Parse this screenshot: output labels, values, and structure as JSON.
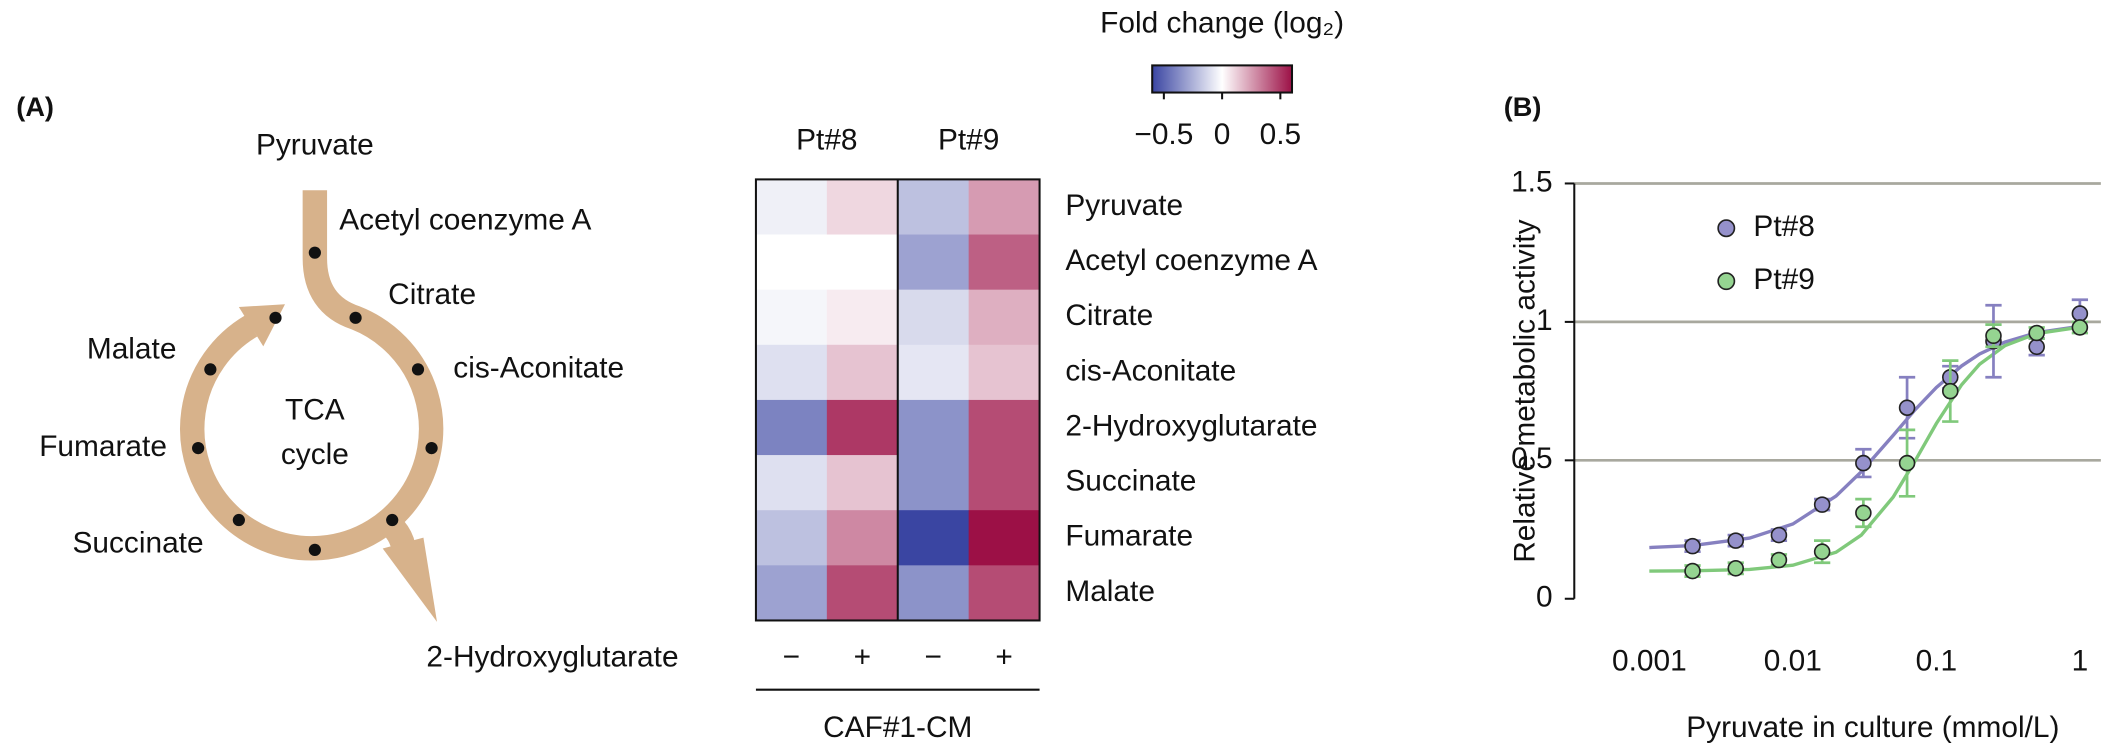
{
  "panel_labels": [
    "(A)",
    "(B)"
  ],
  "diagram": {
    "center": [
      "TCA",
      "cycle"
    ],
    "metabolites": [
      "Pyruvate",
      "Acetyl coenzyme A",
      "Citrate",
      "cis-Aconitate",
      "Malate",
      "Fumarate",
      "Succinate",
      "2-Hydroxyglutarate"
    ]
  },
  "chart_data": [
    {
      "type": "heatmap",
      "column_groups": [
        "Pt#8",
        "Pt#9"
      ],
      "columns": [
        "−",
        "+",
        "−",
        "+"
      ],
      "xlabel": "CAF#1-CM",
      "rows": [
        "Pyruvate",
        "Acetyl coenzyme A",
        "Citrate",
        "cis-Aconitate",
        "2-Hydroxyglutarate",
        "Succinate",
        "Fumarate",
        "Malate"
      ],
      "values": [
        [
          -0.05,
          0.1,
          -0.2,
          0.25
        ],
        [
          0,
          0,
          -0.3,
          0.4
        ],
        [
          -0.03,
          0.05,
          -0.12,
          0.2
        ],
        [
          -0.1,
          0.15,
          -0.08,
          0.15
        ],
        [
          -0.4,
          0.5,
          -0.35,
          0.45
        ],
        [
          -0.1,
          0.15,
          -0.35,
          0.45
        ],
        [
          -0.2,
          0.3,
          -0.6,
          0.6
        ],
        [
          -0.3,
          0.45,
          -0.35,
          0.45
        ]
      ],
      "colors": [
        "#3a45a2",
        "#ffffff",
        "#9c1046"
      ],
      "colorbar": {
        "title": "Fold change (log₂)",
        "clim": [
          -0.6,
          0.6
        ],
        "ticks": [
          {
            "value": -0.5,
            "label": "−0.5"
          },
          0,
          0.5
        ]
      }
    },
    {
      "type": "scatter",
      "xlabel": "Pyruvate in culture (mmol/L)",
      "ylabel": "Relative metabolic activity",
      "log_x": true,
      "xlim": [
        0.0003,
        1.4
      ],
      "ylim": [
        0,
        1.5
      ],
      "xticks": [
        0.001,
        0.01,
        0.1,
        1
      ],
      "yticks": [
        0,
        0.5,
        1,
        1.5
      ],
      "grid": true,
      "legend": "upper-left",
      "x": [
        0.002,
        0.004,
        0.008,
        0.016,
        0.031,
        0.0625,
        0.125,
        0.25,
        0.5,
        1
      ],
      "fit_x": [
        0.001,
        0.002,
        0.005,
        0.01,
        0.02,
        0.03,
        0.05,
        0.07,
        0.1,
        0.15,
        0.2,
        0.3,
        0.5,
        1
      ],
      "series": [
        {
          "name": "Pt#8",
          "color": "#9591cb",
          "line_color": "#8680c0",
          "values": [
            0.19,
            0.21,
            0.23,
            0.34,
            0.49,
            0.69,
            0.8,
            0.93,
            0.91,
            1.03
          ],
          "errors": [
            0.02,
            0.02,
            0.02,
            0.02,
            0.05,
            0.11,
            0.04,
            0.13,
            0.03,
            0.05
          ],
          "fit_values": [
            0.185,
            0.192,
            0.219,
            0.27,
            0.371,
            0.459,
            0.59,
            0.679,
            0.763,
            0.841,
            0.884,
            0.927,
            0.961,
            0.984
          ]
        },
        {
          "name": "Pt#9",
          "color": "#95d491",
          "line_color": "#80c97b",
          "values": [
            0.1,
            0.11,
            0.14,
            0.17,
            0.31,
            0.49,
            0.75,
            0.95,
            0.96,
            0.98
          ],
          "errors": [
            0.02,
            0.02,
            0.02,
            0.04,
            0.05,
            0.12,
            0.11,
            0.04,
            0.02,
            0.02
          ],
          "fit_values": [
            0.1,
            0.101,
            0.106,
            0.121,
            0.168,
            0.23,
            0.367,
            0.492,
            0.633,
            0.773,
            0.847,
            0.914,
            0.958,
            0.981
          ]
        }
      ]
    }
  ]
}
